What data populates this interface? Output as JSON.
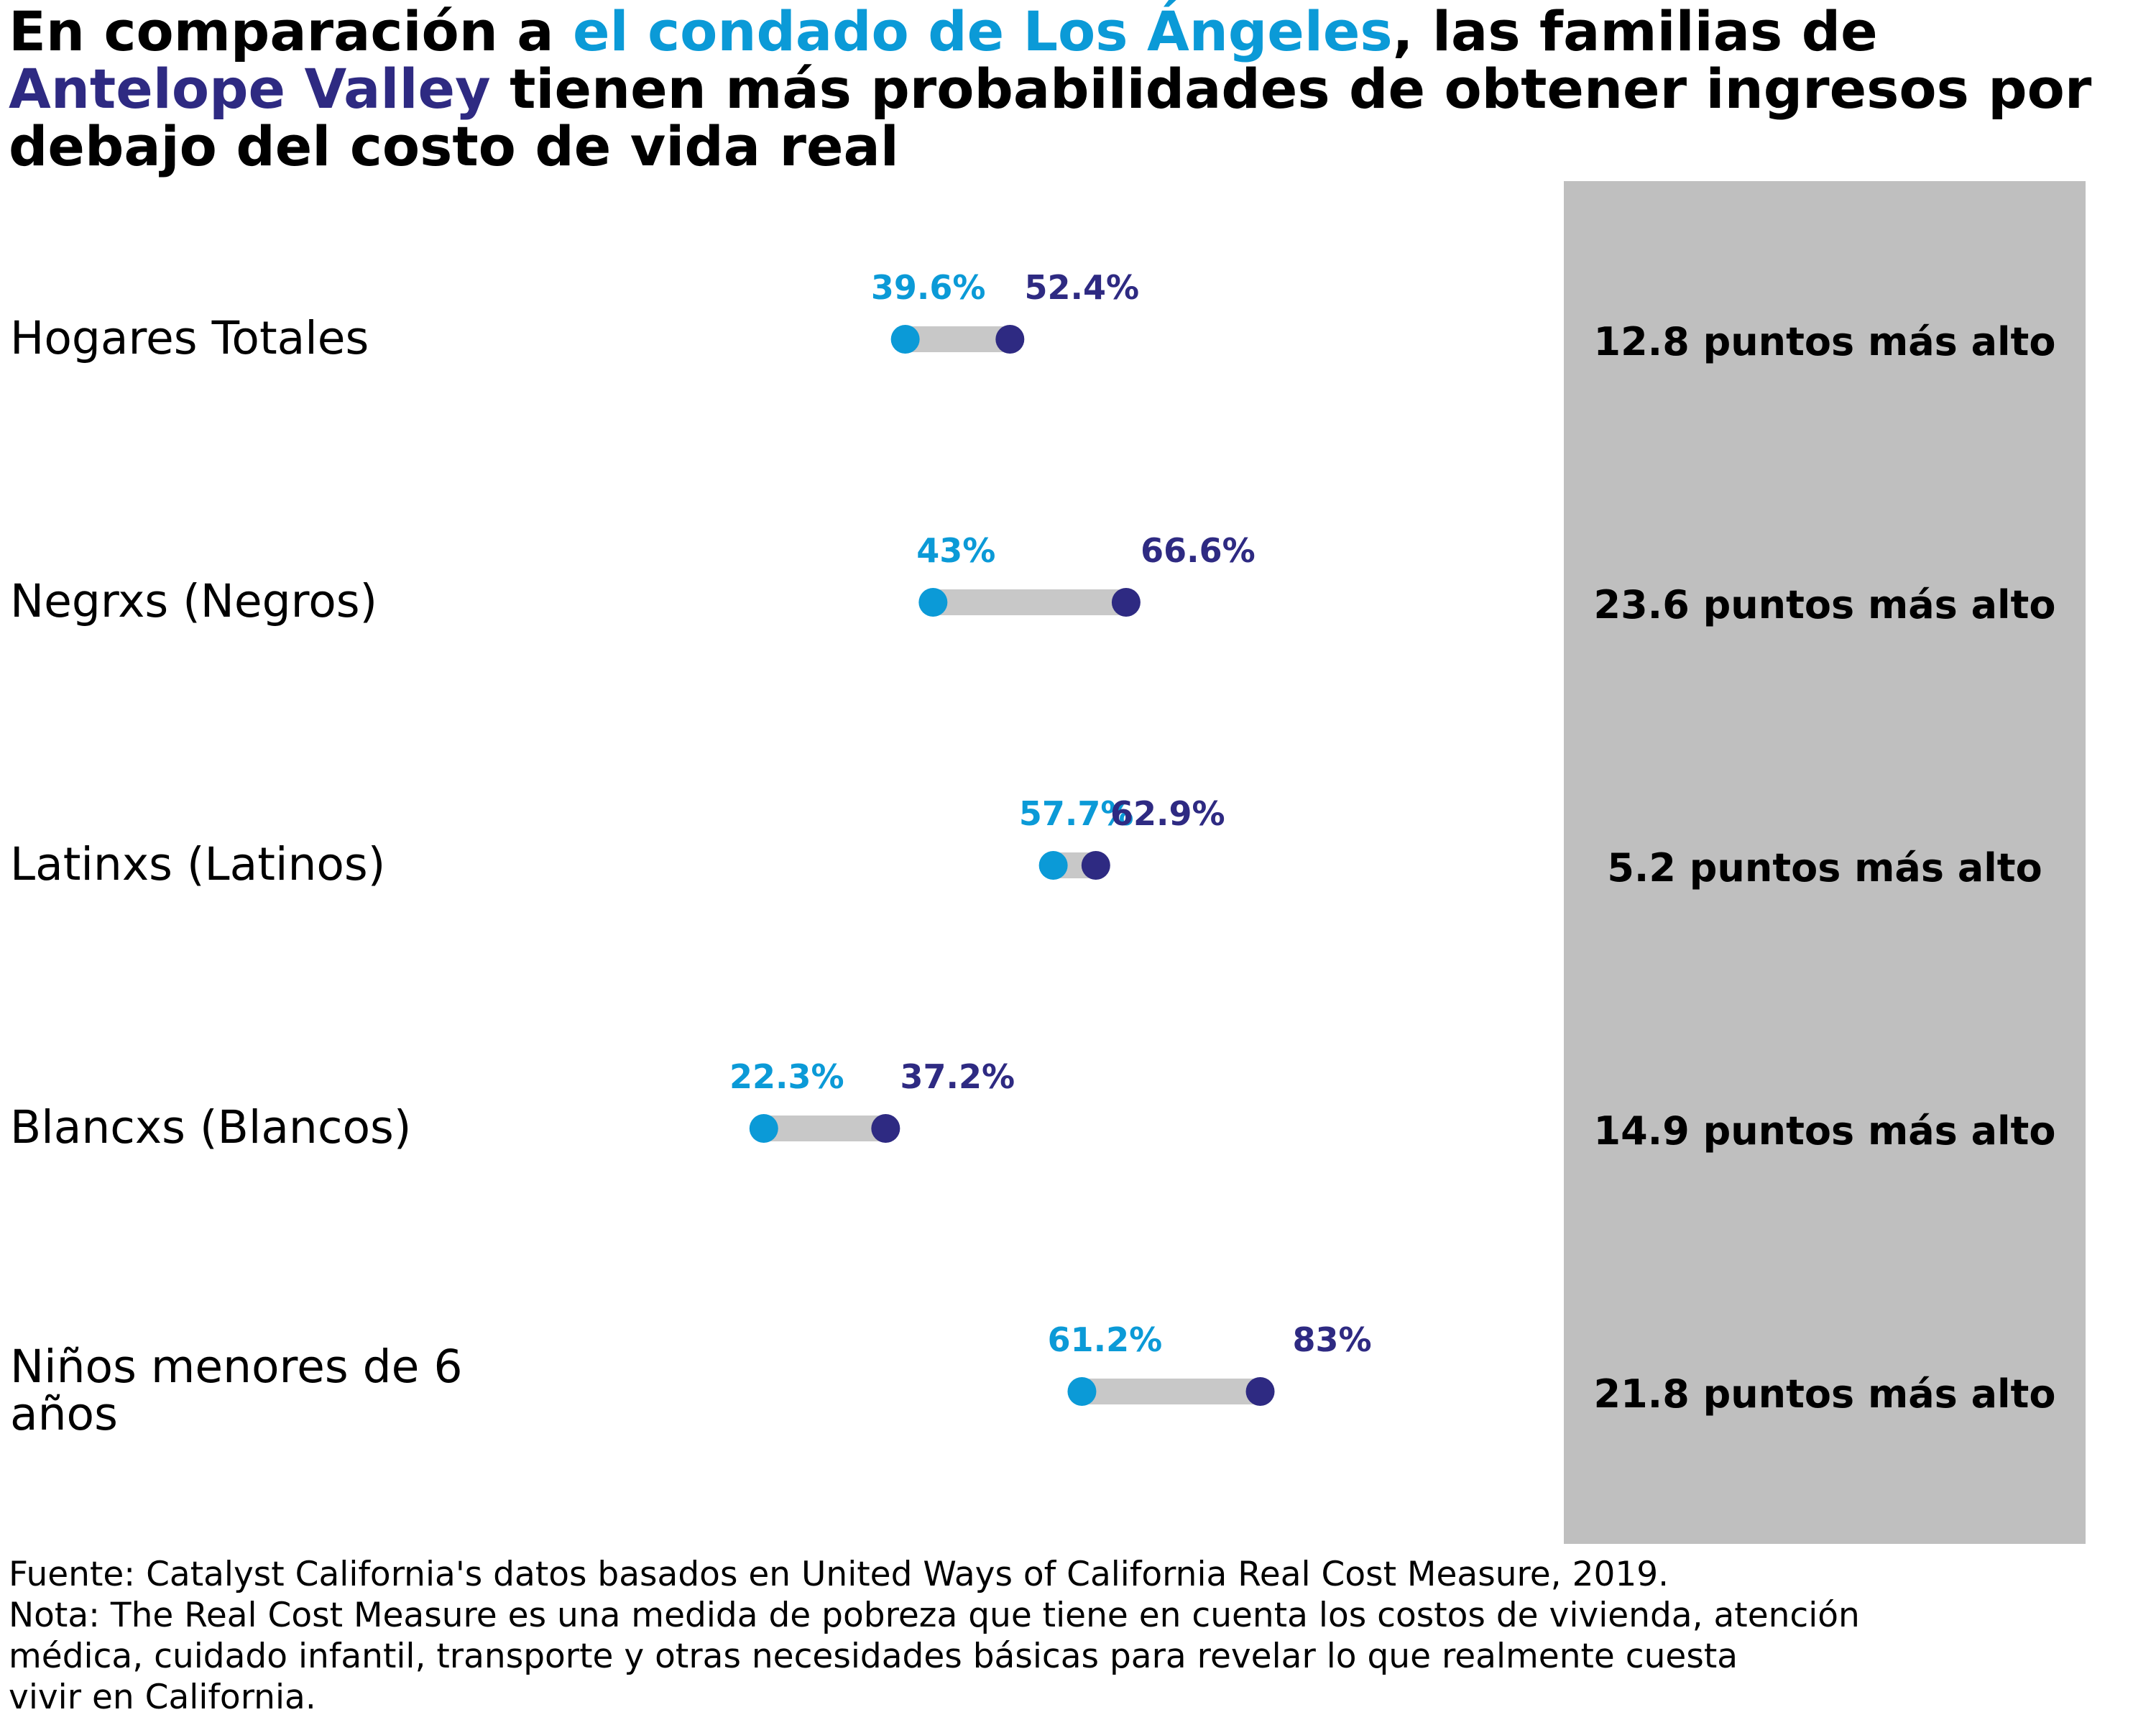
{
  "title": {
    "part1": "En comparación a ",
    "la": "el condado de Los Ángeles",
    "part2": ", las familias de ",
    "av": "Antelope Valley",
    "part3": " tienen más probabilidades de obtener ingresos por debajo del costo de vida real"
  },
  "colors": {
    "la": "#0b9ad7",
    "av": "#2e2a82",
    "connector": "#c8c8c8",
    "panel": "#bfbfbf"
  },
  "chart_data": {
    "type": "dumbbell",
    "title": "En comparación a el condado de Los Ángeles, las familias de Antelope Valley tienen más probabilidades de obtener ingresos por debajo del costo de vida real",
    "categories": [
      [
        "Hogares Totales"
      ],
      [
        "Negrxs (Negros)"
      ],
      [
        "Latinxs (Latinos)"
      ],
      [
        "Blancxs (Blancos)"
      ],
      [
        "Niños menores de 6",
        "años"
      ]
    ],
    "series": [
      {
        "name": "el condado de Los Ángeles",
        "values": [
          39.6,
          43,
          57.7,
          22.3,
          61.2
        ],
        "labels": [
          "39.6%",
          "43%",
          "57.7%",
          "22.3%",
          "61.2%"
        ]
      },
      {
        "name": "Antelope Valley",
        "values": [
          52.4,
          66.6,
          62.9,
          37.2,
          83
        ],
        "labels": [
          "52.4%",
          "66.6%",
          "62.9%",
          "37.2%",
          "83%"
        ]
      }
    ],
    "differences": [
      "12.8 puntos más alto",
      "23.6 puntos más alto",
      "5.2 puntos más alto",
      "14.9 puntos más alto",
      "21.8 puntos más alto"
    ],
    "unit": "%"
  },
  "footnote": {
    "lines": [
      "Fuente: Catalyst California's datos basados en United Ways of California Real Cost Measure, 2019.",
      "Nota: The Real Cost Measure es una medida de pobreza que tiene en cuenta los costos de vivienda, atención",
      "médica, cuidado infantil, transporte y otras necesidades básicas para revelar lo que realmente cuesta",
      "vivir en California."
    ]
  }
}
